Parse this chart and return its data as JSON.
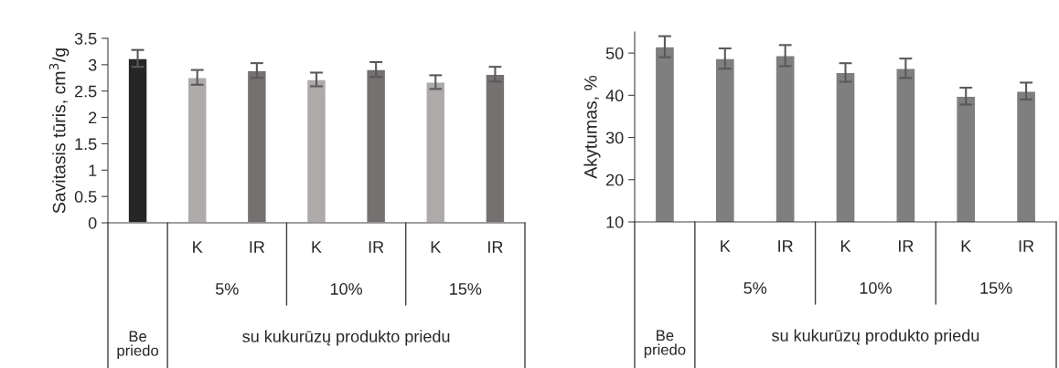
{
  "chart_data": [
    {
      "type": "bar",
      "ylabel": "Savitasis tūris, cm$^{3}$/g",
      "categories": [
        null,
        "K",
        "IR",
        "K",
        "IR",
        "K",
        "IR"
      ],
      "values": [
        3.12,
        2.76,
        2.89,
        2.72,
        2.91,
        2.67,
        2.82
      ],
      "errors": [
        0.16,
        0.14,
        0.14,
        0.13,
        0.14,
        0.13,
        0.14
      ],
      "colors": [
        "#262626",
        "#aeaaaa",
        "#767171",
        "#aeaaaa",
        "#767171",
        "#aeaaaa",
        "#767171"
      ],
      "ylim": [
        0,
        3.5
      ],
      "yticks": [
        0,
        0.5,
        1,
        1.5,
        2,
        2.5,
        3,
        3.5
      ],
      "annotations": [
        "5%",
        "10%",
        "15%",
        "Be priedo",
        "su kukurūzų produkto priedu"
      ]
    },
    {
      "type": "bar",
      "ylabel": "Akytumas, %",
      "categories": [
        null,
        "K",
        "IR",
        "K",
        "IR",
        "K",
        "IR"
      ],
      "values": [
        51.5,
        48.7,
        49.4,
        45.4,
        46.4,
        39.8,
        41.0
      ],
      "errors": [
        2.5,
        2.4,
        2.5,
        2.2,
        2.3,
        2.0,
        2.0
      ],
      "colors": [
        "#7f7f7f",
        "#7f7f7f",
        "#7f7f7f",
        "#7f7f7f",
        "#7f7f7f",
        "#7f7f7f",
        "#7f7f7f"
      ],
      "ylim": [
        10,
        55
      ],
      "yticks": [
        10,
        20,
        30,
        40,
        50
      ],
      "annotations": [
        "5%",
        "10%",
        "15%",
        "Be priedo",
        "su kukurūzų produkto priedu"
      ]
    }
  ]
}
